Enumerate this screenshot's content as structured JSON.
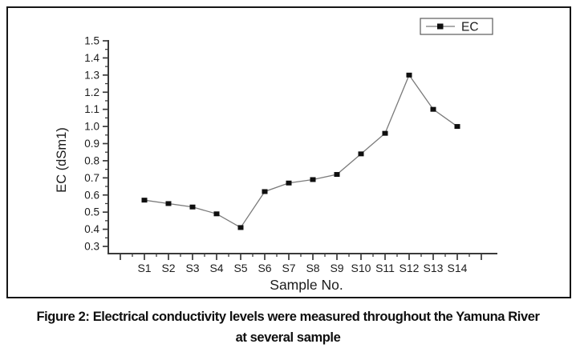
{
  "figure": {
    "caption_line1": "Figure 2: Electrical conductivity levels were measured throughout the Yamuna River",
    "caption_line2": "at several sample"
  },
  "chart_data": {
    "type": "line",
    "title": "",
    "xlabel": "Sample No.",
    "ylabel": "EC (dSm1)",
    "categories": [
      "S1",
      "S2",
      "S3",
      "S4",
      "S5",
      "S6",
      "S7",
      "S8",
      "S9",
      "S10",
      "S11",
      "S12",
      "S13",
      "S14"
    ],
    "series": [
      {
        "name": "EC",
        "values": [
          0.57,
          0.55,
          0.53,
          0.49,
          0.41,
          0.62,
          0.67,
          0.69,
          0.72,
          0.84,
          0.96,
          1.3,
          1.1,
          1.0
        ]
      }
    ],
    "ylim": [
      0.3,
      1.5
    ],
    "ytick_step": 0.1,
    "ytick_labels": [
      "0.3",
      "0.4",
      "0.5",
      "0.6",
      "0.7",
      "0.8",
      "0.9",
      "1.0",
      "1.1",
      "1.2",
      "1.3",
      "1.4",
      "1.5"
    ],
    "grid": false,
    "legend": {
      "position": "top-right",
      "entries": [
        "EC"
      ]
    },
    "colors": {
      "line": "#7a7a7a",
      "marker": "#0f0f0f",
      "axis": "#3a3a3a",
      "text": "#1c1c1c",
      "legend_border": "#5a5a5a",
      "figure_border": "#161616"
    }
  }
}
